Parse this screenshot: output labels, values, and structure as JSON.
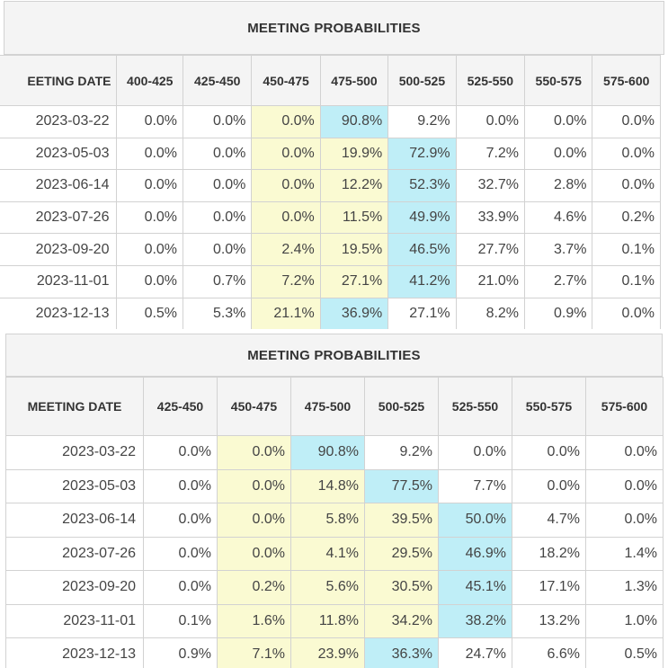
{
  "tables": [
    {
      "title": "MEETING PROBABILITIES",
      "columns": [
        "EETING DATE",
        "400-425",
        "425-450",
        "450-475",
        "475-500",
        "500-525",
        "525-550",
        "550-575",
        "575-600"
      ],
      "rows": [
        [
          "2023-03-22",
          "0.0%",
          "0.0%",
          "0.0%",
          "90.8%",
          "9.2%",
          "0.0%",
          "0.0%",
          "0.0%"
        ],
        [
          "2023-05-03",
          "0.0%",
          "0.0%",
          "0.0%",
          "19.9%",
          "72.9%",
          "7.2%",
          "0.0%",
          "0.0%"
        ],
        [
          "2023-06-14",
          "0.0%",
          "0.0%",
          "0.0%",
          "12.2%",
          "52.3%",
          "32.7%",
          "2.8%",
          "0.0%"
        ],
        [
          "2023-07-26",
          "0.0%",
          "0.0%",
          "0.0%",
          "11.5%",
          "49.9%",
          "33.9%",
          "4.6%",
          "0.2%"
        ],
        [
          "2023-09-20",
          "0.0%",
          "0.0%",
          "2.4%",
          "19.5%",
          "46.5%",
          "27.7%",
          "3.7%",
          "0.1%"
        ],
        [
          "2023-11-01",
          "0.0%",
          "0.7%",
          "7.2%",
          "27.1%",
          "41.2%",
          "21.0%",
          "2.7%",
          "0.1%"
        ],
        [
          "2023-12-13",
          "0.5%",
          "5.3%",
          "21.1%",
          "36.9%",
          "27.1%",
          "8.2%",
          "0.9%",
          "0.0%"
        ]
      ],
      "highlights": [
        [
          "",
          "",
          "",
          "y",
          "c",
          "",
          "",
          "",
          ""
        ],
        [
          "",
          "",
          "",
          "y",
          "y",
          "c",
          "",
          "",
          ""
        ],
        [
          "",
          "",
          "",
          "y",
          "y",
          "c",
          "",
          "",
          ""
        ],
        [
          "",
          "",
          "",
          "y",
          "y",
          "c",
          "",
          "",
          ""
        ],
        [
          "",
          "",
          "",
          "y",
          "y",
          "c",
          "",
          "",
          ""
        ],
        [
          "",
          "",
          "",
          "y",
          "y",
          "c",
          "",
          "",
          ""
        ],
        [
          "",
          "",
          "",
          "y",
          "c",
          "",
          "",
          "",
          ""
        ]
      ]
    },
    {
      "title": "MEETING PROBABILITIES",
      "columns": [
        "MEETING DATE",
        "425-450",
        "450-475",
        "475-500",
        "500-525",
        "525-550",
        "550-575",
        "575-600"
      ],
      "rows": [
        [
          "2023-03-22",
          "0.0%",
          "0.0%",
          "90.8%",
          "9.2%",
          "0.0%",
          "0.0%",
          "0.0%"
        ],
        [
          "2023-05-03",
          "0.0%",
          "0.0%",
          "14.8%",
          "77.5%",
          "7.7%",
          "0.0%",
          "0.0%"
        ],
        [
          "2023-06-14",
          "0.0%",
          "0.0%",
          "5.8%",
          "39.5%",
          "50.0%",
          "4.7%",
          "0.0%"
        ],
        [
          "2023-07-26",
          "0.0%",
          "0.0%",
          "4.1%",
          "29.5%",
          "46.9%",
          "18.2%",
          "1.4%"
        ],
        [
          "2023-09-20",
          "0.0%",
          "0.2%",
          "5.6%",
          "30.5%",
          "45.1%",
          "17.1%",
          "1.3%"
        ],
        [
          "2023-11-01",
          "0.1%",
          "1.6%",
          "11.8%",
          "34.2%",
          "38.2%",
          "13.2%",
          "1.0%"
        ],
        [
          "2023-12-13",
          "0.9%",
          "7.1%",
          "23.9%",
          "36.3%",
          "24.7%",
          "6.6%",
          "0.5%"
        ]
      ],
      "highlights": [
        [
          "",
          "",
          "y",
          "c",
          "",
          "",
          "",
          ""
        ],
        [
          "",
          "",
          "y",
          "y",
          "c",
          "",
          "",
          ""
        ],
        [
          "",
          "",
          "y",
          "y",
          "y",
          "c",
          "",
          ""
        ],
        [
          "",
          "",
          "y",
          "y",
          "y",
          "c",
          "",
          ""
        ],
        [
          "",
          "",
          "y",
          "y",
          "y",
          "c",
          "",
          ""
        ],
        [
          "",
          "",
          "y",
          "y",
          "y",
          "c",
          "",
          ""
        ],
        [
          "",
          "",
          "y",
          "y",
          "c",
          "",
          "",
          ""
        ]
      ]
    }
  ]
}
